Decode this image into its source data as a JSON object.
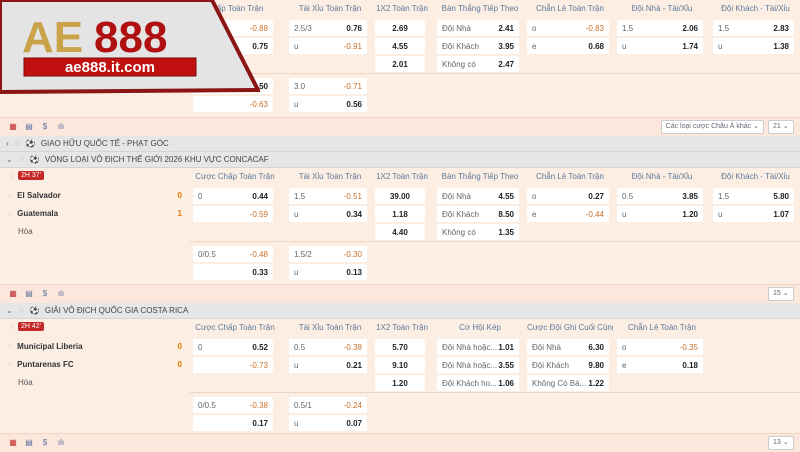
{
  "logo": {
    "brand": "AE888",
    "url": "ae888.it.com"
  },
  "colors": {
    "background": "#fdeee4",
    "negative": "#c8702a",
    "score": "#e07b00",
    "live_badge": "#c62828",
    "header_text": "#5b7a9a"
  },
  "sections": [
    {
      "headers": [
        "Chấp Toàn Trận",
        "Tài Xỉu Toàn Trận",
        "1X2 Toàn Trận",
        "Bàn Thắng Tiếp Theo",
        "Chẵn Lẻ Toàn Trận",
        "Đội Nhà - Tài/Xỉu",
        "Đội Khách - Tài/Xỉu"
      ],
      "rows": [
        [
          {
            "l": "",
            "v": "-0.88"
          },
          {
            "l": "2.5/3",
            "v": "0.76"
          },
          {
            "l": "",
            "v": "2.69"
          },
          {
            "l": "Đội Nhà",
            "v": "2.41"
          },
          {
            "l": "o",
            "v": "-0.83"
          },
          {
            "l": "1.5",
            "v": "2.06"
          },
          {
            "l": "1.5",
            "v": "2.83"
          }
        ],
        [
          {
            "l": "",
            "v": "0.75"
          },
          {
            "l": "u",
            "v": "-0.91"
          },
          {
            "l": "",
            "v": "4.55"
          },
          {
            "l": "Đội Khách",
            "v": "3.95"
          },
          {
            "l": "e",
            "v": "0.68"
          },
          {
            "l": "u",
            "v": "1.74"
          },
          {
            "l": "u",
            "v": "1.38"
          }
        ],
        [
          null,
          null,
          {
            "l": "",
            "v": "2.01"
          },
          {
            "l": "Không có",
            "v": "2.47"
          },
          null,
          null,
          null
        ]
      ],
      "extra_rows": [
        [
          {
            "l": "",
            "v": "0.50"
          },
          {
            "l": "3.0",
            "v": "-0.71"
          }
        ],
        [
          {
            "l": "",
            "v": "-0.63"
          },
          {
            "l": "u",
            "v": "0.56"
          }
        ]
      ],
      "toolbar": {
        "market_select": "Các loại cược Châu Á khác",
        "count_select": "21"
      }
    },
    {
      "leagues_before": [
        {
          "chevron": "›",
          "name": "GIAO HỮU QUỐC TẾ - PHẠT GÓC"
        },
        {
          "chevron": "⌄",
          "name": "VÒNG LOẠI VÔ ĐỊCH THẾ GIỚI 2026 KHU VỰC CONCACAF"
        }
      ],
      "live_time": "2H 37'",
      "teams": [
        {
          "name": "El Salvador",
          "score": "0"
        },
        {
          "name": "Guatemala",
          "score": "1"
        }
      ],
      "draw_label": "Hòa",
      "headers": [
        "Cược Chấp Toàn Trận",
        "Tài Xỉu Toàn Trận",
        "1X2 Toàn Trận",
        "Bàn Thắng Tiếp Theo",
        "Chẵn Lẻ Toàn Trận",
        "Đội Nhà - Tài/Xỉu",
        "Đội Khách - Tài/Xỉu"
      ],
      "rows": [
        [
          {
            "l": "0",
            "v": "0.44"
          },
          {
            "l": "1.5",
            "v": "-0.51"
          },
          {
            "l": "",
            "v": "39.00"
          },
          {
            "l": "Đội Nhà",
            "v": "4.55"
          },
          {
            "l": "o",
            "v": "0.27"
          },
          {
            "l": "0.5",
            "v": "3.85"
          },
          {
            "l": "1.5",
            "v": "5.80"
          }
        ],
        [
          {
            "l": "",
            "v": "-0.59"
          },
          {
            "l": "u",
            "v": "0.34"
          },
          {
            "l": "",
            "v": "1.18"
          },
          {
            "l": "Đội Khách",
            "v": "8.50"
          },
          {
            "l": "e",
            "v": "-0.44"
          },
          {
            "l": "u",
            "v": "1.20"
          },
          {
            "l": "u",
            "v": "1.07"
          }
        ],
        [
          null,
          null,
          {
            "l": "",
            "v": "4.40"
          },
          {
            "l": "Không có",
            "v": "1.35"
          },
          null,
          null,
          null
        ]
      ],
      "extra_rows": [
        [
          {
            "l": "0/0.5",
            "v": "-0.48"
          },
          {
            "l": "1.5/2",
            "v": "-0.30"
          }
        ],
        [
          {
            "l": "",
            "v": "0.33"
          },
          {
            "l": "u",
            "v": "0.13"
          }
        ]
      ],
      "toolbar": {
        "count_select": "15"
      }
    },
    {
      "leagues_before": [
        {
          "chevron": "⌄",
          "name": "GIẢI VÔ ĐỊCH QUỐC GIA COSTA RICA"
        }
      ],
      "live_time": "2H 42'",
      "teams": [
        {
          "name": "Municipal Liberia",
          "score": "0"
        },
        {
          "name": "Puntarenas FC",
          "score": "0"
        }
      ],
      "draw_label": "Hòa",
      "headers": [
        "Cược Chấp Toàn Trận",
        "Tài Xỉu Toàn Trận",
        "1X2 Toàn Trận",
        "Cơ Hội Kép",
        "Cược Đội Ghi Cuối Cùng",
        "Chẵn Lẻ Toàn Trận"
      ],
      "rows": [
        [
          {
            "l": "0",
            "v": "0.52"
          },
          {
            "l": "0.5",
            "v": "-0.38"
          },
          {
            "l": "",
            "v": "5.70"
          },
          {
            "l": "Đội Nhà hoặc...",
            "v": "1.01"
          },
          {
            "l": "Đội Nhà",
            "v": "6.30"
          },
          {
            "l": "o",
            "v": "-0.35"
          }
        ],
        [
          {
            "l": "",
            "v": "-0.73"
          },
          {
            "l": "u",
            "v": "0.21"
          },
          {
            "l": "",
            "v": "9.10"
          },
          {
            "l": "Đội Nhà hoặc...",
            "v": "3.55"
          },
          {
            "l": "Đội Khách",
            "v": "9.80"
          },
          {
            "l": "e",
            "v": "0.18"
          }
        ],
        [
          null,
          null,
          {
            "l": "",
            "v": "1.20"
          },
          {
            "l": "Đội Khách ho...",
            "v": "1.06"
          },
          {
            "l": "Không Có Bà...",
            "v": "1.22"
          },
          null
        ]
      ],
      "extra_rows": [
        [
          {
            "l": "0/0.5",
            "v": "-0.38"
          },
          {
            "l": "0.5/1",
            "v": "-0.24"
          }
        ],
        [
          {
            "l": "",
            "v": "0.17"
          },
          {
            "l": "u",
            "v": "0.07"
          }
        ]
      ],
      "toolbar": {
        "count_select": "13"
      }
    }
  ]
}
